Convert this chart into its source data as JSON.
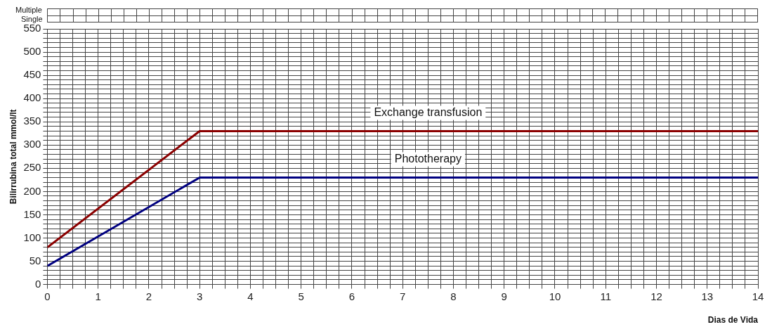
{
  "chart_data": {
    "type": "line",
    "xlabel": "Dias de Vida",
    "ylabel": "Bilirrubina total mmol/lt",
    "annotations": [
      "Multiple",
      "Single"
    ],
    "series": [
      {
        "name": "Exchange transfusion",
        "color": "#8b0000",
        "x": [
          0,
          3,
          14
        ],
        "values": [
          80,
          330,
          330
        ]
      },
      {
        "name": "Phototherapy",
        "color": "#000080",
        "x": [
          0,
          3,
          14
        ],
        "values": [
          40,
          230,
          230
        ]
      }
    ],
    "xlim": [
      0,
      14
    ],
    "xticks": [
      0,
      {
        "value": 0.25,
        "label": null
      },
      {
        "value": 0.5,
        "label": null
      },
      {
        "value": 0.75,
        "label": null
      },
      1,
      {
        "value": 1.25,
        "label": null
      },
      {
        "value": 1.5,
        "label": null
      },
      {
        "value": 1.75,
        "label": null
      },
      2,
      {
        "value": 2.25,
        "label": null
      },
      {
        "value": 2.5,
        "label": null
      },
      {
        "value": 2.75,
        "label": null
      },
      3,
      {
        "value": 3.25,
        "label": null
      },
      {
        "value": 3.5,
        "label": null
      },
      {
        "value": 3.75,
        "label": null
      },
      4,
      {
        "value": 4.25,
        "label": null
      },
      {
        "value": 4.5,
        "label": null
      },
      {
        "value": 4.75,
        "label": null
      },
      5,
      {
        "value": 5.25,
        "label": null
      },
      {
        "value": 5.5,
        "label": null
      },
      {
        "value": 5.75,
        "label": null
      },
      6,
      {
        "value": 6.25,
        "label": null
      },
      {
        "value": 6.5,
        "label": null
      },
      {
        "value": 6.75,
        "label": null
      },
      7,
      {
        "value": 7.25,
        "label": null
      },
      {
        "value": 7.5,
        "label": null
      },
      {
        "value": 7.75,
        "label": null
      },
      8,
      {
        "value": 8.25,
        "label": null
      },
      {
        "value": 8.5,
        "label": null
      },
      {
        "value": 8.75,
        "label": null
      },
      9,
      {
        "value": 9.25,
        "label": null
      },
      {
        "value": 9.5,
        "label": null
      },
      {
        "value": 9.75,
        "label": null
      },
      10,
      {
        "value": 10.25,
        "label": null
      },
      {
        "value": 10.5,
        "label": null
      },
      {
        "value": 10.75,
        "label": null
      },
      11,
      {
        "value": 11.25,
        "label": null
      },
      {
        "value": 11.5,
        "label": null
      },
      {
        "value": 11.75,
        "label": null
      },
      12,
      {
        "value": 12.25,
        "label": null
      },
      {
        "value": 12.5,
        "label": null
      },
      {
        "value": 12.75,
        "label": null
      },
      13,
      {
        "value": 13.25,
        "label": null
      },
      {
        "value": 13.5,
        "label": null
      },
      {
        "value": 13.75,
        "label": null
      },
      14
    ],
    "ylim": [
      0,
      550
    ],
    "yticks": [
      0,
      {
        "value": 10,
        "label": null
      },
      {
        "value": 20,
        "label": null
      },
      {
        "value": 30,
        "label": null
      },
      {
        "value": 40,
        "label": null
      },
      50,
      {
        "value": 60,
        "label": null
      },
      {
        "value": 70,
        "label": null
      },
      {
        "value": 80,
        "label": null
      },
      {
        "value": 90,
        "label": null
      },
      100,
      {
        "value": 110,
        "label": null
      },
      {
        "value": 120,
        "label": null
      },
      {
        "value": 130,
        "label": null
      },
      {
        "value": 140,
        "label": null
      },
      150,
      {
        "value": 160,
        "label": null
      },
      {
        "value": 170,
        "label": null
      },
      {
        "value": 180,
        "label": null
      },
      {
        "value": 190,
        "label": null
      },
      200,
      {
        "value": 210,
        "label": null
      },
      {
        "value": 220,
        "label": null
      },
      {
        "value": 230,
        "label": null
      },
      {
        "value": 240,
        "label": null
      },
      250,
      {
        "value": 260,
        "label": null
      },
      {
        "value": 270,
        "label": null
      },
      {
        "value": 280,
        "label": null
      },
      {
        "value": 290,
        "label": null
      },
      300,
      {
        "value": 310,
        "label": null
      },
      {
        "value": 320,
        "label": null
      },
      {
        "value": 330,
        "label": null
      },
      {
        "value": 340,
        "label": null
      },
      350,
      {
        "value": 360,
        "label": null
      },
      {
        "value": 370,
        "label": null
      },
      {
        "value": 380,
        "label": null
      },
      {
        "value": 390,
        "label": null
      },
      400,
      {
        "value": 410,
        "label": null
      },
      {
        "value": 420,
        "label": null
      },
      {
        "value": 430,
        "label": null
      },
      {
        "value": 440,
        "label": null
      },
      450,
      {
        "value": 460,
        "label": null
      },
      {
        "value": 470,
        "label": null
      },
      {
        "value": 480,
        "label": null
      },
      {
        "value": 490,
        "label": null
      },
      500,
      {
        "value": 510,
        "label": null
      },
      {
        "value": 520,
        "label": null
      },
      {
        "value": 530,
        "label": null
      },
      {
        "value": 540,
        "label": null
      },
      550
    ],
    "grid": true,
    "legend": false,
    "marker": "none",
    "line_style": "solid"
  }
}
